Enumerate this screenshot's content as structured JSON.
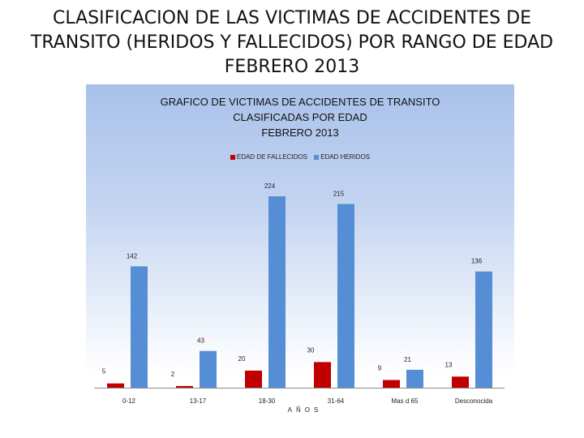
{
  "slide": {
    "title_lines": [
      "CLASIFICACION DE LAS VICTIMAS DE ACCIDENTES DE",
      "TRANSITO  (HERIDOS Y FALLECIDOS) POR RANGO DE EDAD",
      "FEBRERO 2013"
    ]
  },
  "chart_data": {
    "type": "bar",
    "title_lines": [
      "GRAFICO DE VICTIMAS DE ACCIDENTES DE TRANSITO",
      "CLASIFICADAS POR EDAD",
      "FEBRERO 2013"
    ],
    "categories": [
      "0-12",
      "13-17",
      "18-30",
      "31-64",
      "Mas d 65",
      "Desconocida"
    ],
    "series": [
      {
        "name": "EDAD DE FALLECIDOS",
        "color": "#c00000",
        "values": [
          5,
          2,
          20,
          30,
          9,
          13
        ]
      },
      {
        "name": "EDAD HERIDOS",
        "color": "#558ed5",
        "values": [
          142,
          43,
          224,
          215,
          21,
          136
        ]
      }
    ],
    "xlabel": "AÑOS",
    "ylabel": "",
    "ylim": [
      0,
      224
    ],
    "legend_position": "top",
    "grid": false
  }
}
